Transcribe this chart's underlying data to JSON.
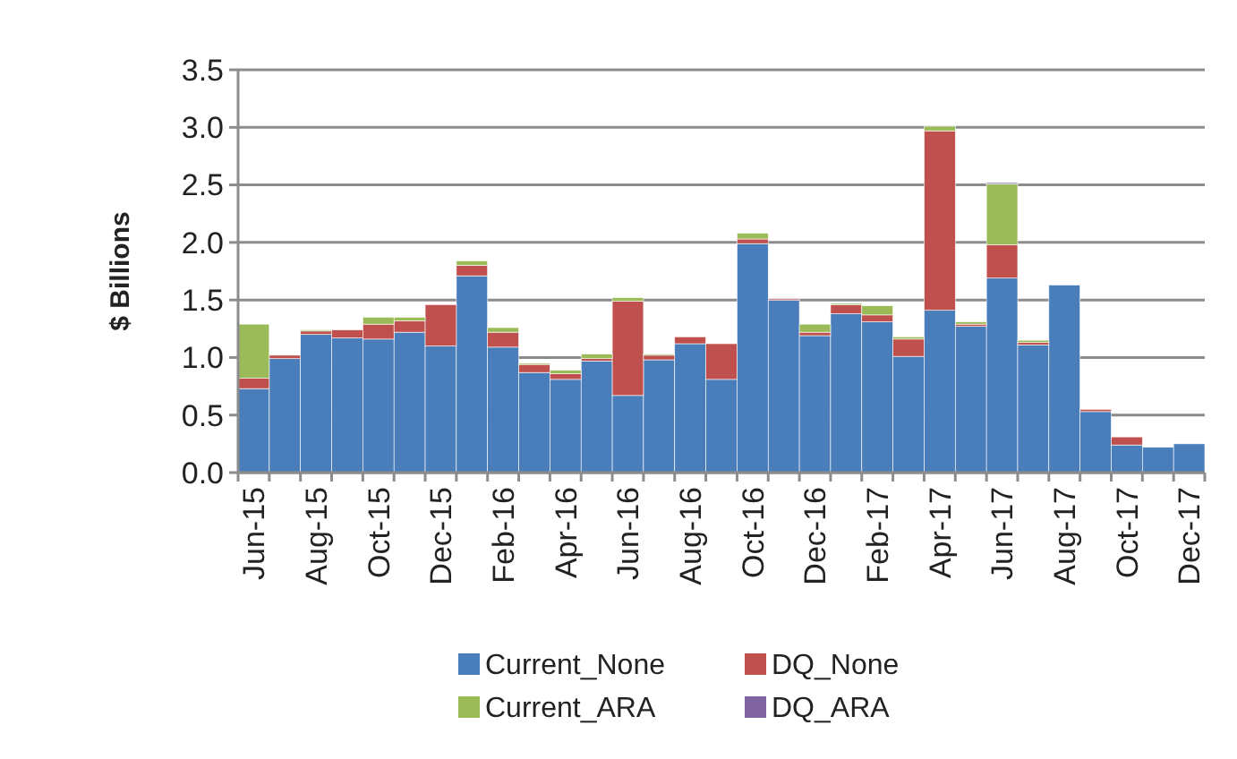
{
  "chart_data": {
    "type": "bar",
    "stacked": true,
    "ylabel": "$ Billions",
    "categories": [
      "Jun-15",
      null,
      "Aug-15",
      null,
      "Oct-15",
      null,
      "Dec-15",
      null,
      "Feb-16",
      null,
      "Apr-16",
      null,
      "Jun-16",
      null,
      "Aug-16",
      null,
      "Oct-16",
      null,
      "Dec-16",
      null,
      "Feb-17",
      null,
      "Apr-17",
      null,
      "Jun-17",
      null,
      "Aug-17",
      null,
      "Oct-17",
      null,
      "Dec-17"
    ],
    "series": [
      {
        "name": "Current_None",
        "color": "#4a7ebb",
        "values": [
          0.73,
          0.99,
          1.2,
          1.17,
          1.16,
          1.22,
          1.1,
          1.71,
          1.09,
          0.87,
          0.81,
          0.97,
          0.67,
          0.98,
          1.12,
          0.81,
          1.99,
          1.5,
          1.19,
          1.38,
          1.31,
          1.01,
          1.41,
          1.27,
          1.69,
          1.11,
          1.63,
          0.53,
          0.24,
          0.22,
          0.25
        ]
      },
      {
        "name": "DQ_None",
        "color": "#c0504d",
        "values": [
          0.09,
          0.03,
          0.03,
          0.07,
          0.13,
          0.1,
          0.36,
          0.09,
          0.13,
          0.07,
          0.05,
          0.02,
          0.82,
          0.04,
          0.06,
          0.31,
          0.04,
          0.01,
          0.03,
          0.08,
          0.06,
          0.15,
          1.56,
          0.02,
          0.29,
          0.02,
          0,
          0.02,
          0.07,
          0,
          0
        ]
      },
      {
        "name": "Current_ARA",
        "color": "#9bbb59",
        "values": [
          0.47,
          0,
          0.01,
          0,
          0.06,
          0.03,
          0,
          0.04,
          0.04,
          0.01,
          0.03,
          0.04,
          0.03,
          0.01,
          0,
          0,
          0.05,
          0,
          0.07,
          0.01,
          0.08,
          0.02,
          0.04,
          0.02,
          0.53,
          0.02,
          0,
          0,
          0,
          0,
          0
        ]
      },
      {
        "name": "DQ_ARA",
        "color": "#8064a2",
        "values": [
          0,
          0,
          0,
          0,
          0,
          0,
          0,
          0,
          0,
          0,
          0,
          0,
          0,
          0,
          0,
          0,
          0,
          0,
          0,
          0,
          0,
          0,
          0,
          0,
          0.01,
          0,
          0,
          0,
          0,
          0,
          0
        ]
      }
    ],
    "ylim": [
      0,
      3.5
    ],
    "yticks": [
      {
        "value": 0,
        "label": "0.0"
      },
      {
        "value": 0.5,
        "label": "0.5"
      },
      {
        "value": 1,
        "label": "1.0"
      },
      {
        "value": 1.5,
        "label": "1.5"
      },
      {
        "value": 2,
        "label": "2.0"
      },
      {
        "value": 2.5,
        "label": "2.5"
      },
      {
        "value": 3,
        "label": "3.0"
      },
      {
        "value": 3.5,
        "label": "3.5"
      }
    ],
    "grid": "y",
    "legend": "bottom"
  }
}
